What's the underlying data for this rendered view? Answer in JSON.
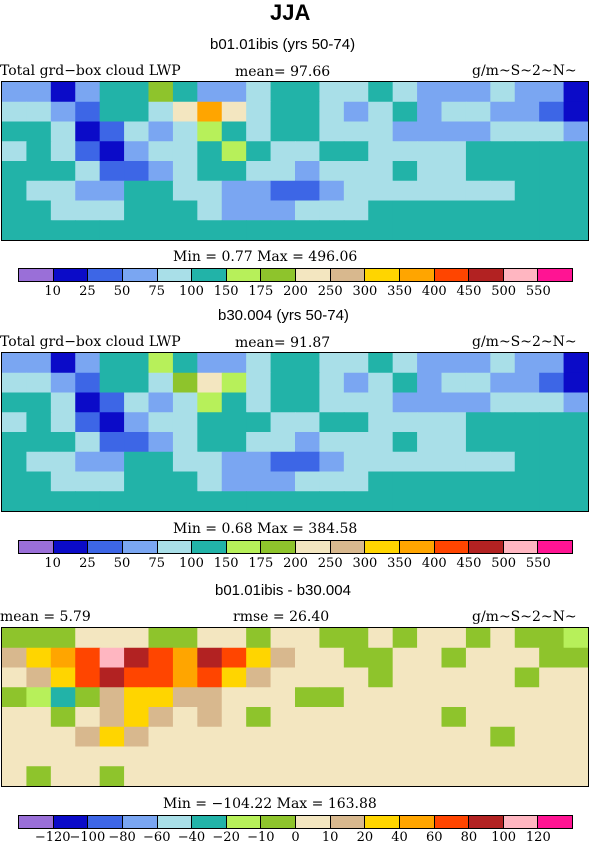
{
  "title": "JJA",
  "colors": {
    "abs_palette": [
      "#9a6fd8",
      "#0b0bc8",
      "#3d66e6",
      "#7aa6f2",
      "#a9dfe8",
      "#22b3a8",
      "#b7f05a",
      "#8ec42c",
      "#f3e6c0",
      "#d8b88e",
      "#ffd500",
      "#ffa500",
      "#ff4500",
      "#b22222",
      "#ffb6c1",
      "#ff1493"
    ],
    "diff_palette": [
      "#9a6fd8",
      "#0b0bc8",
      "#3d66e6",
      "#7aa6f2",
      "#a9dfe8",
      "#22b3a8",
      "#b7f05a",
      "#8ec42c",
      "#f3e6c0",
      "#d8b88e",
      "#ffd500",
      "#ffa500",
      "#ff4500",
      "#b22222",
      "#ffb6c1",
      "#ff1493"
    ]
  },
  "chart_data": [
    {
      "type": "heatmap",
      "subtitle": "b01.01ibis (yrs 50-74)",
      "left_label": "Total grd−box cloud LWP",
      "center_label": "mean=  97.66",
      "right_label": "g/m~S~2~N~",
      "stats": "Min =    0.77 Max = 496.06",
      "levels": [
        "10",
        "25",
        "50",
        "75",
        "100",
        "150",
        "175",
        "200",
        "250",
        "300",
        "350",
        "400",
        "450",
        "500",
        "550"
      ],
      "grid": [
        [
          3,
          3,
          1,
          3,
          5,
          5,
          7,
          5,
          3,
          3,
          4,
          5,
          5,
          4,
          4,
          5,
          4,
          3,
          3,
          3,
          4,
          3,
          3,
          1
        ],
        [
          4,
          4,
          3,
          2,
          5,
          5,
          4,
          8,
          11,
          8,
          4,
          5,
          5,
          4,
          3,
          4,
          5,
          3,
          4,
          4,
          3,
          3,
          2,
          1
        ],
        [
          5,
          5,
          4,
          1,
          2,
          4,
          3,
          4,
          6,
          5,
          4,
          5,
          5,
          4,
          4,
          4,
          3,
          3,
          3,
          3,
          4,
          4,
          4,
          3
        ],
        [
          4,
          5,
          4,
          2,
          1,
          3,
          4,
          4,
          5,
          6,
          5,
          4,
          4,
          5,
          5,
          4,
          4,
          4,
          4,
          5,
          5,
          5,
          5,
          5
        ],
        [
          5,
          5,
          5,
          4,
          2,
          2,
          3,
          4,
          5,
          5,
          4,
          4,
          3,
          4,
          4,
          4,
          5,
          4,
          4,
          5,
          5,
          5,
          5,
          5
        ],
        [
          5,
          4,
          4,
          3,
          3,
          5,
          5,
          4,
          4,
          3,
          3,
          2,
          2,
          3,
          4,
          4,
          4,
          4,
          4,
          4,
          4,
          5,
          5,
          5
        ],
        [
          5,
          5,
          4,
          4,
          4,
          5,
          5,
          5,
          4,
          3,
          3,
          3,
          4,
          4,
          4,
          5,
          5,
          5,
          5,
          5,
          5,
          5,
          5,
          5
        ],
        [
          5,
          5,
          5,
          5,
          5,
          5,
          5,
          5,
          5,
          5,
          5,
          5,
          5,
          5,
          5,
          5,
          5,
          5,
          5,
          5,
          5,
          5,
          5,
          5
        ]
      ]
    },
    {
      "type": "heatmap",
      "subtitle": "b30.004 (yrs 50-74)",
      "left_label": "Total grd−box cloud LWP",
      "center_label": "mean=  91.87",
      "right_label": "g/m~S~2~N~",
      "stats": "Min =    0.68 Max = 384.58",
      "levels": [
        "10",
        "25",
        "50",
        "75",
        "100",
        "150",
        "175",
        "200",
        "250",
        "300",
        "350",
        "400",
        "450",
        "500",
        "550"
      ],
      "grid": [
        [
          3,
          3,
          1,
          3,
          5,
          5,
          6,
          5,
          3,
          3,
          4,
          5,
          5,
          4,
          4,
          5,
          4,
          3,
          3,
          3,
          4,
          3,
          3,
          1
        ],
        [
          4,
          4,
          3,
          2,
          5,
          5,
          4,
          7,
          8,
          6,
          4,
          5,
          5,
          4,
          3,
          4,
          5,
          3,
          4,
          4,
          3,
          3,
          2,
          1
        ],
        [
          5,
          5,
          4,
          1,
          2,
          4,
          3,
          4,
          6,
          5,
          4,
          5,
          5,
          4,
          4,
          4,
          3,
          3,
          3,
          3,
          4,
          4,
          4,
          3
        ],
        [
          4,
          5,
          4,
          2,
          1,
          3,
          4,
          4,
          5,
          5,
          5,
          4,
          4,
          5,
          5,
          4,
          4,
          4,
          4,
          5,
          5,
          5,
          5,
          5
        ],
        [
          5,
          5,
          5,
          4,
          2,
          2,
          3,
          4,
          5,
          5,
          4,
          4,
          3,
          4,
          4,
          4,
          5,
          4,
          4,
          5,
          5,
          5,
          5,
          5
        ],
        [
          5,
          4,
          4,
          3,
          3,
          5,
          5,
          4,
          4,
          3,
          3,
          2,
          2,
          3,
          4,
          4,
          4,
          4,
          4,
          4,
          4,
          5,
          5,
          5
        ],
        [
          5,
          5,
          4,
          4,
          4,
          5,
          5,
          5,
          4,
          3,
          3,
          3,
          4,
          4,
          4,
          5,
          5,
          5,
          5,
          5,
          5,
          5,
          5,
          5
        ],
        [
          5,
          5,
          5,
          5,
          5,
          5,
          5,
          5,
          5,
          5,
          5,
          5,
          5,
          5,
          5,
          5,
          5,
          5,
          5,
          5,
          5,
          5,
          5,
          5
        ]
      ]
    },
    {
      "type": "heatmap",
      "subtitle": "b01.01ibis - b30.004",
      "left_label": "mean =     5.79",
      "center_label": "rmse =   26.40",
      "right_label": "g/m~S~2~N~",
      "stats": "Min = −104.22 Max = 163.88",
      "levels": [
        "−120",
        "−100",
        "−80",
        "−60",
        "−40",
        "−20",
        "−10",
        "0",
        "10",
        "20",
        "40",
        "60",
        "80",
        "100",
        "120"
      ],
      "grid": [
        [
          7,
          7,
          7,
          8,
          8,
          8,
          7,
          7,
          8,
          8,
          7,
          8,
          8,
          7,
          7,
          8,
          7,
          8,
          8,
          7,
          8,
          7,
          7,
          6
        ],
        [
          9,
          10,
          11,
          12,
          14,
          13,
          12,
          11,
          13,
          12,
          10,
          9,
          8,
          8,
          7,
          7,
          8,
          8,
          7,
          8,
          8,
          8,
          7,
          7
        ],
        [
          8,
          9,
          10,
          12,
          13,
          12,
          12,
          11,
          12,
          10,
          9,
          8,
          8,
          8,
          8,
          7,
          8,
          8,
          8,
          8,
          8,
          7,
          8,
          8
        ],
        [
          7,
          6,
          5,
          7,
          9,
          10,
          10,
          9,
          9,
          8,
          8,
          8,
          7,
          7,
          8,
          8,
          8,
          8,
          8,
          8,
          8,
          8,
          8,
          8
        ],
        [
          8,
          8,
          7,
          8,
          9,
          10,
          9,
          8,
          9,
          8,
          7,
          8,
          8,
          8,
          8,
          8,
          8,
          8,
          7,
          8,
          8,
          8,
          8,
          8
        ],
        [
          8,
          8,
          8,
          9,
          10,
          9,
          8,
          8,
          8,
          8,
          8,
          8,
          8,
          8,
          8,
          8,
          8,
          8,
          8,
          8,
          7,
          8,
          8,
          8
        ],
        [
          8,
          8,
          8,
          8,
          8,
          8,
          8,
          8,
          8,
          8,
          8,
          8,
          8,
          8,
          8,
          8,
          8,
          8,
          8,
          8,
          8,
          8,
          8,
          8
        ],
        [
          8,
          7,
          8,
          8,
          7,
          8,
          8,
          8,
          8,
          8,
          8,
          8,
          8,
          8,
          8,
          8,
          8,
          8,
          8,
          8,
          8,
          8,
          8,
          8
        ]
      ]
    }
  ]
}
